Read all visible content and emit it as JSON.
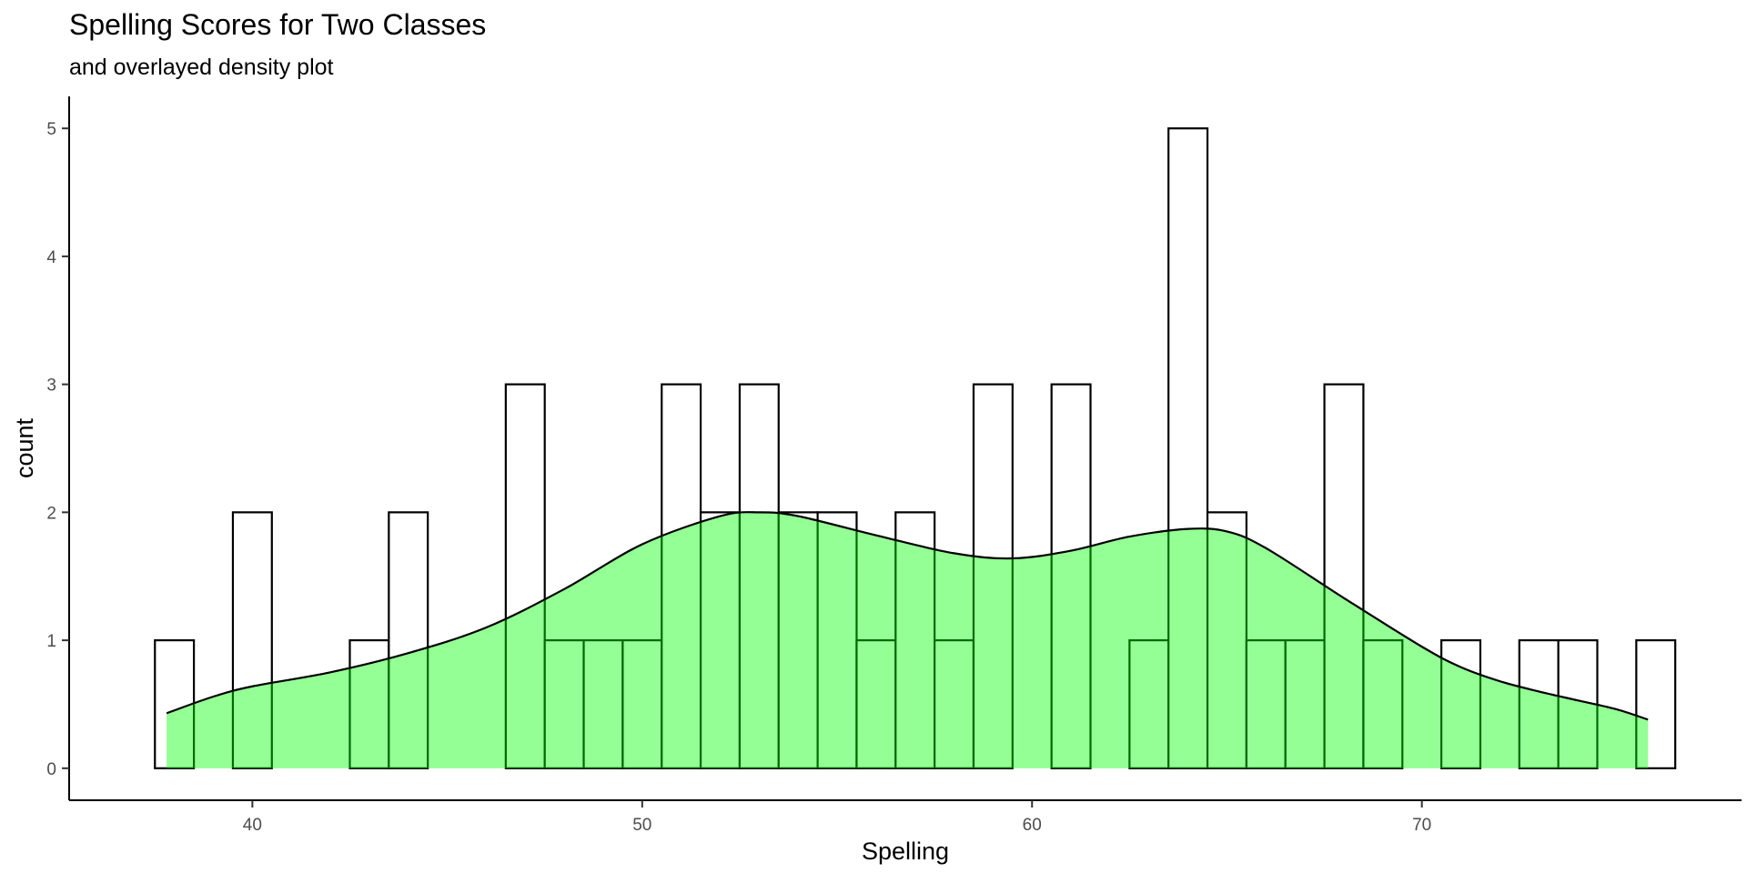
{
  "chart_data": {
    "type": "histogram",
    "title": "Spelling Scores for Two Classes",
    "subtitle": "and overlayed density plot",
    "xlabel": "Spelling",
    "ylabel": "count",
    "xlim": [
      35.3,
      78.2
    ],
    "ylim": [
      -0.25,
      5.25
    ],
    "x_ticks": [
      40,
      50,
      60,
      70
    ],
    "y_ticks": [
      0,
      1,
      2,
      3,
      4,
      5
    ],
    "bin_width": 1,
    "bins": [
      {
        "center": 38,
        "count": 1
      },
      {
        "center": 39,
        "count": 0
      },
      {
        "center": 40,
        "count": 2
      },
      {
        "center": 41,
        "count": 0
      },
      {
        "center": 42,
        "count": 0
      },
      {
        "center": 43,
        "count": 1
      },
      {
        "center": 44,
        "count": 2
      },
      {
        "center": 45,
        "count": 0
      },
      {
        "center": 46,
        "count": 0
      },
      {
        "center": 47,
        "count": 3
      },
      {
        "center": 48,
        "count": 1
      },
      {
        "center": 49,
        "count": 1
      },
      {
        "center": 50,
        "count": 1
      },
      {
        "center": 51,
        "count": 3
      },
      {
        "center": 52,
        "count": 2
      },
      {
        "center": 53,
        "count": 3
      },
      {
        "center": 54,
        "count": 2
      },
      {
        "center": 55,
        "count": 2
      },
      {
        "center": 56,
        "count": 1
      },
      {
        "center": 57,
        "count": 2
      },
      {
        "center": 58,
        "count": 1
      },
      {
        "center": 59,
        "count": 3
      },
      {
        "center": 60,
        "count": 0
      },
      {
        "center": 61,
        "count": 3
      },
      {
        "center": 62,
        "count": 0
      },
      {
        "center": 63,
        "count": 1
      },
      {
        "center": 64,
        "count": 5
      },
      {
        "center": 65,
        "count": 2
      },
      {
        "center": 66,
        "count": 1
      },
      {
        "center": 67,
        "count": 1
      },
      {
        "center": 68,
        "count": 3
      },
      {
        "center": 69,
        "count": 1
      },
      {
        "center": 70,
        "count": 0
      },
      {
        "center": 71,
        "count": 1
      },
      {
        "center": 72,
        "count": 0
      },
      {
        "center": 73,
        "count": 1
      },
      {
        "center": 74,
        "count": 1
      },
      {
        "center": 75,
        "count": 0
      },
      {
        "center": 76,
        "count": 1
      }
    ],
    "density": {
      "fill_color": "#00ff00",
      "fill_opacity": 0.42,
      "line_color": "#000000",
      "x": [
        37.8,
        39,
        40,
        42,
        44,
        46,
        48,
        50,
        52,
        53,
        54,
        56,
        58,
        59.5,
        61,
        62.5,
        64,
        65,
        66,
        68,
        70,
        71,
        72,
        73,
        74,
        75,
        75.8
      ],
      "y": [
        0.43,
        0.56,
        0.64,
        0.75,
        0.9,
        1.1,
        1.4,
        1.75,
        1.97,
        2.0,
        1.97,
        1.82,
        1.68,
        1.64,
        1.7,
        1.81,
        1.87,
        1.85,
        1.72,
        1.33,
        0.95,
        0.79,
        0.68,
        0.6,
        0.53,
        0.46,
        0.38
      ]
    },
    "bar_fill": "#ffffff",
    "bar_stroke": "#000000",
    "grid": false,
    "legend": "none"
  }
}
